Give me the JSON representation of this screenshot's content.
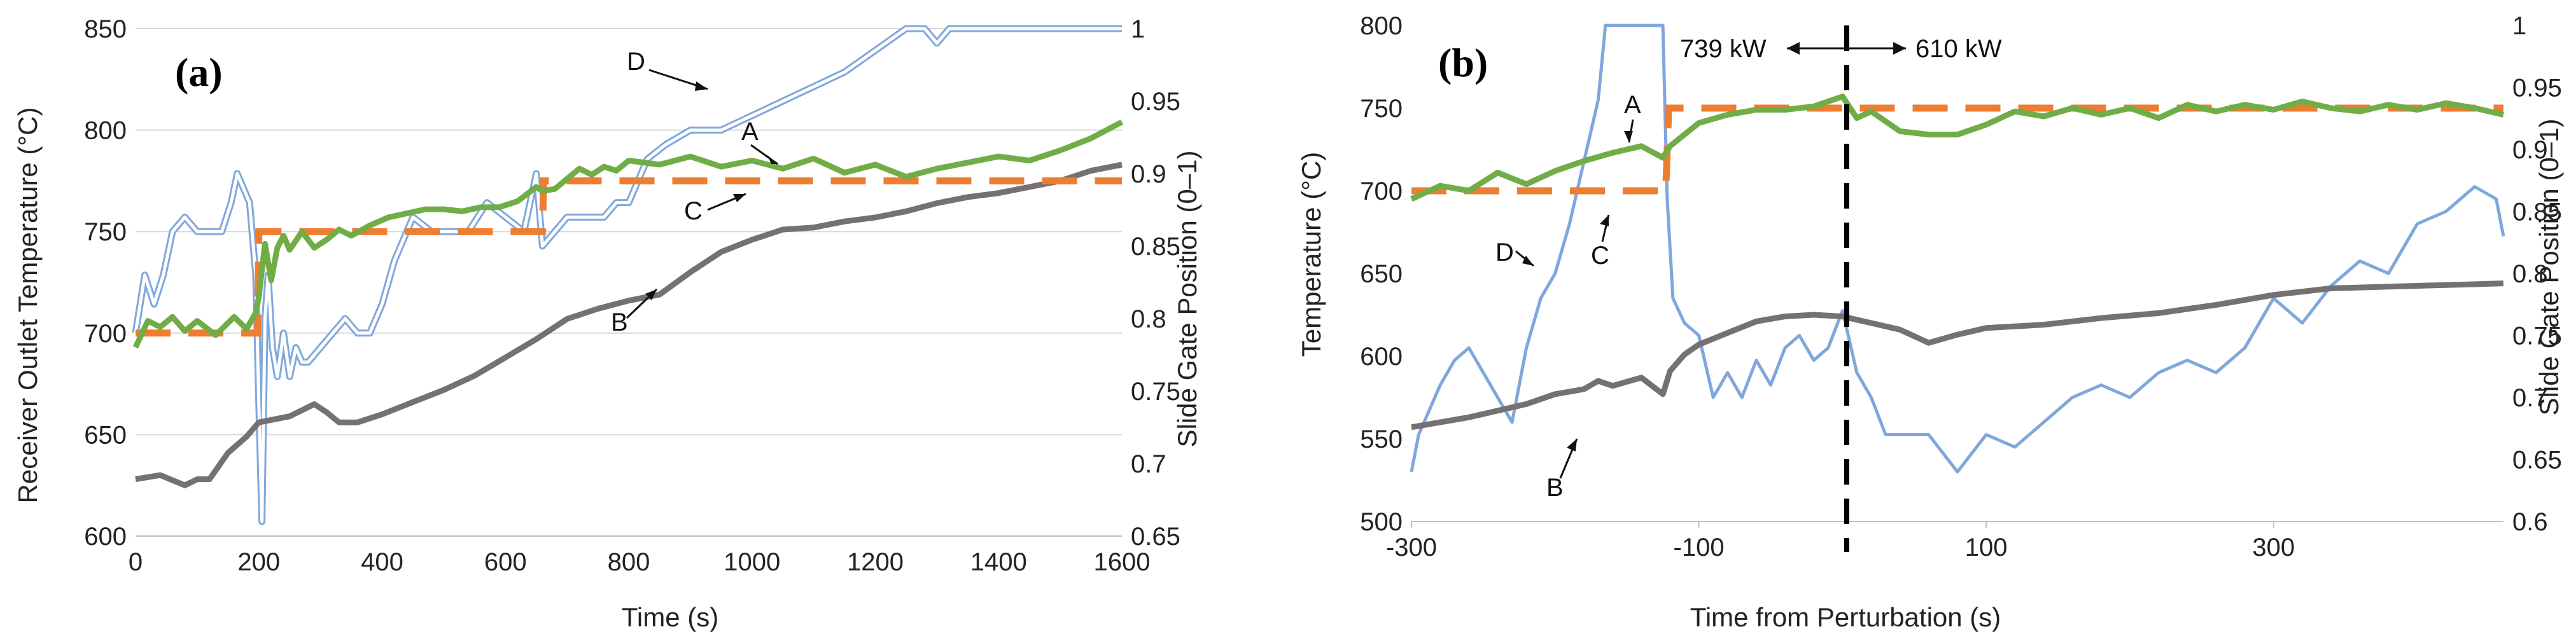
{
  "colors": {
    "A": "#70ad47",
    "B": "#767171",
    "C": "#ed7d31",
    "D": "#7fa7dc",
    "grid": "#d9d9d9",
    "axis": "#bfbfbf",
    "text": "#222222"
  },
  "chart_data": [
    {
      "type": "line",
      "panel_label": "(a)",
      "xlabel": "Time (s)",
      "ylabel": "Receiver Outlet Temperature (°C)",
      "y2label": "Slide Gate Position (0–1)",
      "xlim": [
        0,
        1600
      ],
      "ylim": [
        600,
        850
      ],
      "y2lim": [
        0.65,
        1.0
      ],
      "xticks": [
        "0",
        "200",
        "400",
        "600",
        "800",
        "1000",
        "1200",
        "1400",
        "1600"
      ],
      "yticks": [
        "600",
        "650",
        "700",
        "750",
        "800",
        "850"
      ],
      "y2ticks": [
        "0.65",
        "0.7",
        "0.75",
        "0.8",
        "0.85",
        "0.9",
        "0.95",
        "1"
      ],
      "grid": "horizontal",
      "series": [
        {
          "name": "A",
          "label": "A",
          "axis": "left",
          "style": "solid",
          "x": [
            0,
            20,
            40,
            60,
            80,
            100,
            130,
            160,
            180,
            195,
            200,
            210,
            220,
            230,
            240,
            250,
            270,
            290,
            310,
            330,
            350,
            380,
            410,
            440,
            470,
            500,
            530,
            560,
            590,
            620,
            650,
            660,
            680,
            700,
            720,
            740,
            760,
            780,
            800,
            850,
            900,
            950,
            1000,
            1050,
            1100,
            1150,
            1200,
            1250,
            1300,
            1350,
            1400,
            1450,
            1500,
            1550,
            1600
          ],
          "y": [
            693,
            706,
            703,
            708,
            701,
            706,
            699,
            708,
            702,
            710,
            718,
            744,
            726,
            742,
            748,
            741,
            750,
            742,
            746,
            751,
            748,
            753,
            757,
            759,
            761,
            761,
            760,
            762,
            762,
            765,
            772,
            770,
            771,
            776,
            781,
            778,
            782,
            780,
            785,
            783,
            787,
            782,
            785,
            781,
            786,
            779,
            783,
            777,
            781,
            784,
            787,
            785,
            790,
            796,
            804
          ]
        },
        {
          "name": "B",
          "label": "B",
          "axis": "left",
          "style": "solid",
          "x": [
            0,
            40,
            80,
            100,
            120,
            150,
            180,
            200,
            250,
            290,
            310,
            330,
            360,
            400,
            450,
            500,
            550,
            600,
            650,
            700,
            750,
            800,
            850,
            900,
            950,
            1000,
            1050,
            1100,
            1150,
            1200,
            1250,
            1300,
            1350,
            1400,
            1450,
            1500,
            1550,
            1600
          ],
          "y": [
            628,
            630,
            625,
            628,
            628,
            641,
            649,
            656,
            659,
            665,
            661,
            656,
            656,
            660,
            666,
            672,
            679,
            688,
            697,
            707,
            712,
            716,
            719,
            730,
            740,
            746,
            751,
            752,
            755,
            757,
            760,
            764,
            767,
            769,
            772,
            775,
            780,
            783
          ]
        },
        {
          "name": "C",
          "label": "C",
          "axis": "left",
          "style": "dashed",
          "x": [
            0,
            198,
            200,
            400,
            402,
            660,
            662,
            1600
          ],
          "y": [
            700,
            700,
            750,
            750,
            750,
            750,
            775,
            775
          ]
        },
        {
          "name": "D",
          "label": "D",
          "axis": "right",
          "style": "double",
          "x": [
            0,
            15,
            30,
            45,
            60,
            80,
            100,
            120,
            140,
            155,
            165,
            175,
            185,
            195,
            200,
            205,
            210,
            215,
            222,
            230,
            240,
            250,
            260,
            270,
            280,
            300,
            320,
            340,
            360,
            380,
            400,
            420,
            450,
            480,
            510,
            540,
            570,
            600,
            630,
            650,
            660,
            680,
            700,
            720,
            740,
            760,
            780,
            800,
            830,
            860,
            900,
            950,
            1000,
            1050,
            1100,
            1150,
            1200,
            1250,
            1280,
            1300,
            1320,
            1350,
            1400,
            1450,
            1500,
            1550,
            1600
          ],
          "y": [
            0.79,
            0.83,
            0.81,
            0.83,
            0.86,
            0.87,
            0.86,
            0.86,
            0.86,
            0.88,
            0.9,
            0.89,
            0.88,
            0.83,
            0.74,
            0.66,
            0.8,
            0.83,
            0.78,
            0.76,
            0.79,
            0.76,
            0.78,
            0.77,
            0.77,
            0.78,
            0.79,
            0.8,
            0.79,
            0.79,
            0.81,
            0.84,
            0.87,
            0.86,
            0.86,
            0.86,
            0.88,
            0.87,
            0.86,
            0.9,
            0.85,
            0.86,
            0.87,
            0.87,
            0.87,
            0.87,
            0.88,
            0.88,
            0.91,
            0.92,
            0.93,
            0.93,
            0.94,
            0.95,
            0.96,
            0.97,
            0.985,
            1.0,
            1.0,
            0.99,
            1.0,
            1.0,
            1.0,
            1.0,
            1.0,
            1.0,
            1.0
          ]
        }
      ]
    },
    {
      "type": "line",
      "panel_label": "(b)",
      "xlabel": "Time from Perturbation (s)",
      "ylabel": "Temperature (°C)",
      "y2label": "Slide Gate Position (0–1)",
      "xlim": [
        -300,
        460
      ],
      "ylim": [
        500,
        800
      ],
      "y2lim": [
        0.6,
        1.0
      ],
      "xticks": [
        "-300",
        "-100",
        "100",
        "300"
      ],
      "xtick_values": [
        -300,
        -100,
        100,
        300
      ],
      "yticks": [
        "500",
        "550",
        "600",
        "650",
        "700",
        "750",
        "800"
      ],
      "y2ticks": [
        "0.6",
        "0.65",
        "0.7",
        "0.75",
        "0.8",
        "0.85",
        "0.9",
        "0.95",
        "1"
      ],
      "grid": "none",
      "perturbation_x": 0,
      "power_before": "739 kW",
      "power_after": "610 kW",
      "series": [
        {
          "name": "A",
          "label": "A",
          "axis": "left",
          "style": "solid",
          "x": [
            -300,
            -280,
            -260,
            -240,
            -220,
            -200,
            -180,
            -160,
            -140,
            -125,
            -120,
            -100,
            -80,
            -60,
            -40,
            -20,
            0,
            10,
            20,
            40,
            60,
            80,
            100,
            120,
            140,
            160,
            180,
            200,
            220,
            240,
            260,
            280,
            300,
            320,
            340,
            360,
            380,
            400,
            420,
            440,
            460
          ],
          "y": [
            695,
            703,
            700,
            711,
            704,
            712,
            718,
            723,
            727,
            720,
            727,
            741,
            746,
            749,
            749,
            751,
            757,
            744,
            748,
            736,
            734,
            734,
            740,
            748,
            745,
            750,
            746,
            750,
            744,
            752,
            748,
            752,
            749,
            754,
            750,
            748,
            752,
            749,
            753,
            750,
            746
          ]
        },
        {
          "name": "B",
          "label": "B",
          "axis": "left",
          "style": "solid",
          "x": [
            -300,
            -260,
            -220,
            -200,
            -180,
            -170,
            -160,
            -140,
            -125,
            -120,
            -110,
            -100,
            -80,
            -60,
            -40,
            -20,
            0,
            20,
            40,
            60,
            80,
            100,
            140,
            180,
            220,
            260,
            300,
            340,
            380,
            420,
            460
          ],
          "y": [
            557,
            563,
            571,
            577,
            580,
            585,
            582,
            587,
            577,
            591,
            601,
            607,
            614,
            621,
            624,
            625,
            624,
            620,
            616,
            608,
            613,
            617,
            619,
            623,
            626,
            631,
            637,
            641,
            642,
            643,
            644
          ]
        },
        {
          "name": "C",
          "label": "C",
          "axis": "left",
          "style": "dashed",
          "x": [
            -300,
            -123,
            -121,
            460
          ],
          "y": [
            700,
            700,
            750,
            750
          ]
        },
        {
          "name": "D",
          "label": "D",
          "axis": "right",
          "style": "solid",
          "x": [
            -300,
            -295,
            -280,
            -270,
            -260,
            -250,
            -240,
            -230,
            -220,
            -210,
            -200,
            -190,
            -180,
            -170,
            -165,
            -160,
            -150,
            -140,
            -130,
            -125,
            -122,
            -118,
            -110,
            -100,
            -90,
            -80,
            -70,
            -60,
            -50,
            -40,
            -30,
            -20,
            -10,
            0,
            10,
            20,
            30,
            40,
            60,
            80,
            100,
            120,
            140,
            160,
            180,
            200,
            220,
            240,
            260,
            280,
            300,
            320,
            340,
            360,
            380,
            400,
            420,
            440,
            455,
            460
          ],
          "y": [
            0.64,
            0.67,
            0.71,
            0.73,
            0.74,
            0.72,
            0.7,
            0.68,
            0.74,
            0.78,
            0.8,
            0.84,
            0.89,
            0.94,
            1.0,
            1.0,
            1.0,
            1.0,
            1.0,
            1.0,
            0.86,
            0.78,
            0.76,
            0.75,
            0.7,
            0.72,
            0.7,
            0.73,
            0.71,
            0.74,
            0.75,
            0.73,
            0.74,
            0.77,
            0.72,
            0.7,
            0.67,
            0.67,
            0.67,
            0.64,
            0.67,
            0.66,
            0.68,
            0.7,
            0.71,
            0.7,
            0.72,
            0.73,
            0.72,
            0.74,
            0.78,
            0.76,
            0.79,
            0.81,
            0.8,
            0.84,
            0.85,
            0.87,
            0.86,
            0.83
          ]
        }
      ]
    }
  ],
  "annotations_a": {
    "A": "A",
    "B": "B",
    "C": "C",
    "D": "D"
  },
  "annotations_b": {
    "A": "A",
    "B": "B",
    "C": "C",
    "D": "D"
  }
}
